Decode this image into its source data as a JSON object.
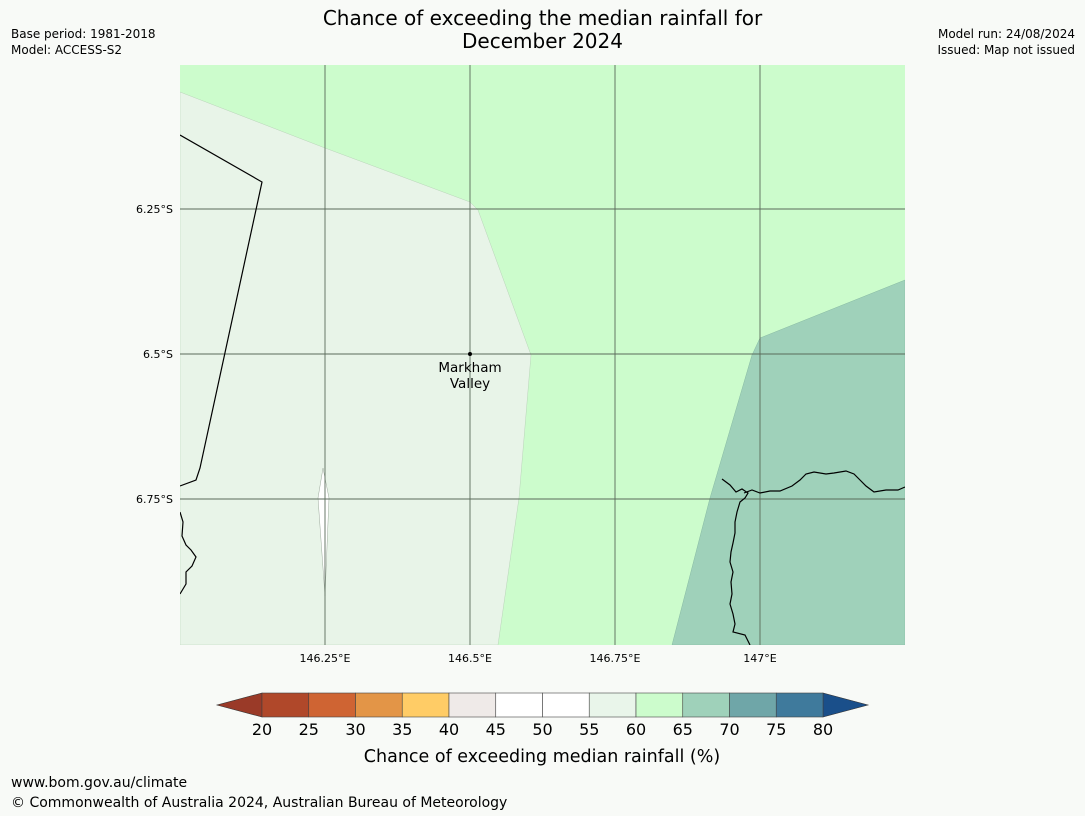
{
  "header": {
    "title_line1": "Chance of exceeding the median rainfall for",
    "title_line2": "December 2024",
    "base_period": "Base period: 1981-2018",
    "model": "Model: ACCESS-S2",
    "model_run": "Model run: 24/08/2024",
    "issued": "Issued: Map not issued"
  },
  "map": {
    "lat_ticks": [
      "6.25°S",
      "6.5°S",
      "6.75°S"
    ],
    "lon_ticks": [
      "146.25°E",
      "146.5°E",
      "146.75°E",
      "147°E"
    ],
    "place": {
      "name_line1": "Markham",
      "name_line2": "Valley"
    },
    "region_colors": {
      "band_55_60": "#e8f4e8",
      "band_60_65": "#ccfccc",
      "band_65_70": "#9fd1ba",
      "band_50_55": "#ffffff"
    }
  },
  "colorbar": {
    "label": "Chance of exceeding median rainfall (%)",
    "ticks": [
      "20",
      "25",
      "30",
      "35",
      "40",
      "45",
      "50",
      "55",
      "60",
      "65",
      "70",
      "75",
      "80"
    ],
    "low_extend_color": "#9a3a28",
    "high_extend_color": "#1a4f8a",
    "colors": [
      "#b0482a",
      "#cf6433",
      "#e39547",
      "#ffcc66",
      "#efeae8",
      "#ffffff",
      "#ffffff",
      "#e9f5ea",
      "#ccfccc",
      "#9fd1ba",
      "#6fa6a8",
      "#3f7a9c"
    ]
  },
  "footer": {
    "url": "www.bom.gov.au/climate",
    "copyright": "© Commonwealth of Australia 2024, Australian Bureau of Meteorology"
  }
}
